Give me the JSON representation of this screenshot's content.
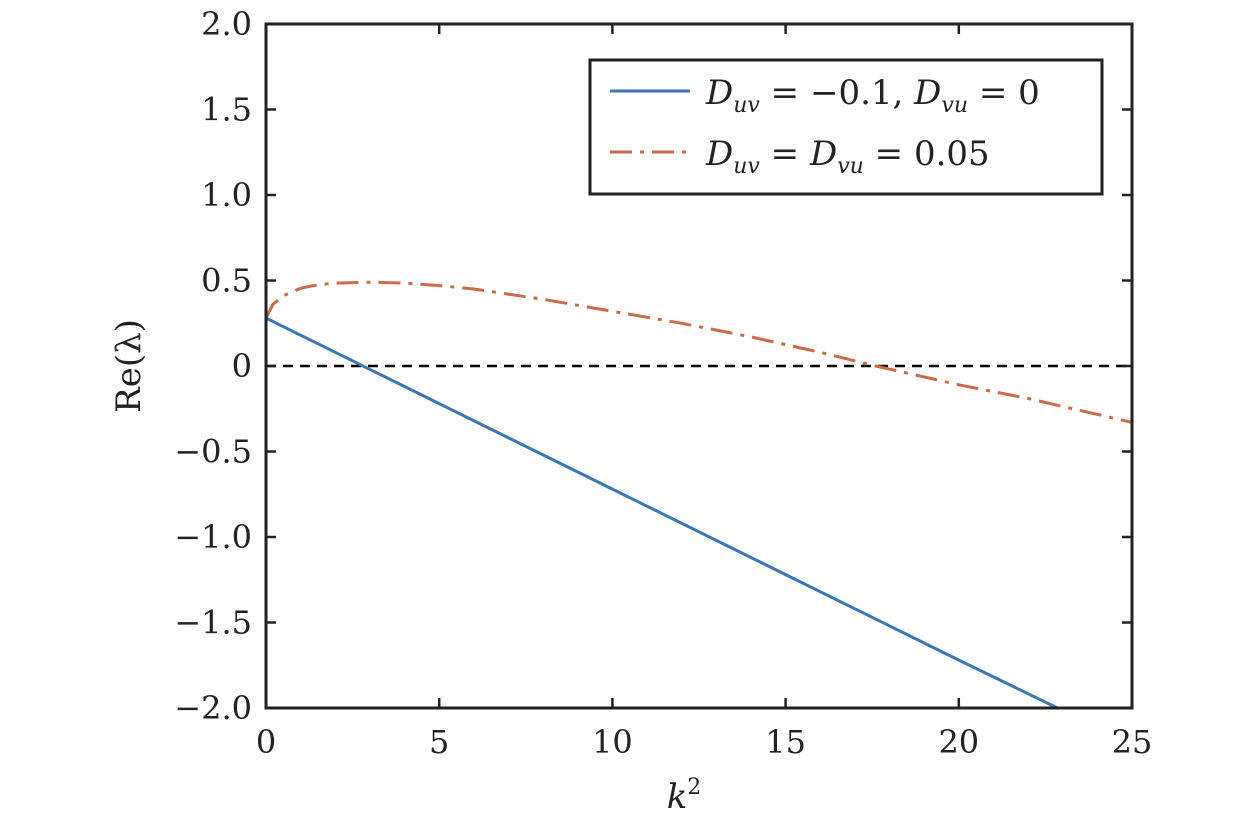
{
  "chart_data": {
    "type": "line",
    "title": "",
    "xlabel": "k",
    "xlabel_sup": "2",
    "ylabel": "Re(λ)",
    "xlim": [
      0,
      25
    ],
    "ylim": [
      -2.0,
      2.0
    ],
    "x_ticks": [
      0,
      5,
      10,
      15,
      20,
      25
    ],
    "x_tick_labels": [
      "0",
      "5",
      "10",
      "15",
      "20",
      "25"
    ],
    "y_ticks": [
      2.0,
      1.5,
      1.0,
      0.5,
      0,
      -0.5,
      -1.0,
      -1.5,
      -2.0
    ],
    "y_tick_labels": [
      "2.0",
      "1.5",
      "1.0",
      "0.5",
      "0",
      "−0.5",
      "−1.0",
      "−1.5",
      "−2.0"
    ],
    "grid": false,
    "legend_position": "top-right",
    "reference_line": {
      "y": 0,
      "style": "dashed",
      "color": "#000000"
    },
    "series": [
      {
        "legend": {
          "p1": "D",
          "s1": "uv",
          "p2": " = −0.1, ",
          "p3": "D",
          "s2": "vu",
          "p4": " = 0"
        },
        "color": "#3a77b5",
        "style": "solid",
        "x": [
          0,
          5,
          10,
          15,
          20,
          22.85
        ],
        "y": [
          0.28,
          -0.22,
          -0.72,
          -1.22,
          -1.72,
          -2.0
        ]
      },
      {
        "legend": {
          "p1": "D",
          "s1": "uv",
          "p2": " = ",
          "p3": "D",
          "s2": "vu",
          "p4": " = 0.05"
        },
        "color": "#cc6a4a",
        "style": "dashdot",
        "x": [
          0,
          0.2,
          0.5,
          1,
          1.5,
          2,
          3,
          4,
          5,
          6,
          8,
          10,
          12,
          14,
          16,
          17.6,
          20,
          22,
          25
        ],
        "y": [
          0.28,
          0.36,
          0.41,
          0.455,
          0.475,
          0.485,
          0.49,
          0.485,
          0.47,
          0.45,
          0.39,
          0.32,
          0.25,
          0.17,
          0.08,
          0.0,
          -0.11,
          -0.19,
          -0.33
        ]
      }
    ]
  }
}
